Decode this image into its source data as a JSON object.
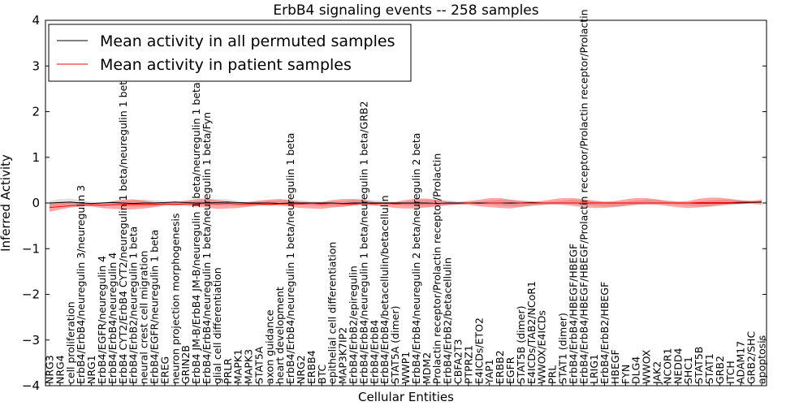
{
  "chart_data": {
    "type": "line",
    "title": "ErbB4 signaling events -- 258 samples",
    "xlabel": "Cellular Entities",
    "ylabel": "Inferred Activity",
    "ylim": [
      -4,
      4
    ],
    "yticks": [
      -4,
      -3,
      -2,
      -1,
      0,
      1,
      2,
      3,
      4
    ],
    "grid": false,
    "legend_position": "top-left",
    "categories": [
      "NRG3",
      "NRG4",
      "cell proliferation",
      "ErbB4/ErbB4/neuregulin 3/neuregulin 3",
      "NRG1",
      "ErbB4/EGFR/neuregulin 4",
      "ErbB4/ErbB4/neuregulin 4",
      "ErbB4 CYT2/ErbB4 CYT2/neuregulin 1 beta/neuregulin 1 beta",
      "ErbB4/ErbB2/neuregulin 1 beta",
      "neural crest cell migration",
      "ErbB4/EGFR/neuregulin 1 beta",
      "EREG",
      "neuron projection morphogenesis",
      "GRIN2B",
      "ErbB4 JM-B/ErbB4 JM-B/neuregulin 1 beta/neuregulin 1 beta",
      "ErbB4/ErbB4/neuregulin 1 beta/neuregulin 1 beta/Fyn",
      "glial cell differentiation",
      "PRLR",
      "MAPK1",
      "MAPK3",
      "STAT5A",
      "axon guidance",
      "heart development",
      "ErbB4/ErbB4/neuregulin 1 beta/neuregulin 1 beta",
      "NRG2",
      "ERBB4",
      "BTC",
      "epithelial cell differentiation",
      "MAP3K7IP2",
      "ErbB4/ErbB2/epiregulin",
      "ErbB4/ErbB4/neuregulin 1 beta/neuregulin 1 beta/GRB2",
      "ErbB4/ErbB4",
      "ErbB4/ErbB4/betacellulin/betacellulin",
      "STAT5A (dimer)",
      "WWP1",
      "ErbB4/ErbB4/neuregulin 2 beta/neuregulin 2 beta",
      "MDM2",
      "Prolactin receptor/Prolactin receptor/Prolactin",
      "ErbB4/ErbB2/betacellulin",
      "CBFA2T3",
      "PTPRZ1",
      "E4ICDs/ETO2",
      "YAP1",
      "ERBB2",
      "EGFR",
      "STAT5B (dimer)",
      "E4ICDs/TAB2/NCoR1",
      "WWOX/E4ICDs",
      "PRL",
      "STAT1 (dimer)",
      "ErbB4/ErbB4/HBEGF/HBEGF",
      "ErbB4/ErbB4/HBEGF/HBEGF/Prolactin receptor/Prolactin receptor/Prolactin",
      "LRIG1",
      "ErbB4/ErbB2/HBEGF",
      "HBEGF",
      "FYN",
      "DLG4",
      "WWOX",
      "JAK2",
      "NCOR1",
      "NEDD4",
      "SHC1",
      "STAT5B",
      "STAT1",
      "GRB2",
      "ITCH",
      "ADAM17",
      "GRB2/SHC",
      "apoptosis"
    ],
    "series": [
      {
        "name": "Mean activity in all permuted samples",
        "color": "#000000",
        "values": [
          0.0,
          0.01,
          0.02,
          0.0,
          -0.01,
          0.0,
          0.01,
          0.0,
          -0.01,
          0.0,
          0.0,
          0.01,
          0.02,
          0.01,
          0.0,
          0.0,
          0.01,
          0.02,
          0.01,
          0.0,
          0.0,
          0.0,
          -0.01,
          0.0,
          0.0,
          0.0,
          0.0,
          0.0,
          -0.01,
          0.0,
          0.0,
          0.0,
          0.0,
          0.0,
          0.0,
          0.0,
          0.0,
          -0.01,
          0.0,
          0.0,
          0.0,
          0.0,
          0.0,
          0.0,
          0.0,
          0.0,
          0.01,
          0.0,
          0.0,
          0.0,
          0.0,
          0.0,
          0.0,
          0.0,
          0.0,
          0.0,
          0.0,
          0.0,
          0.0,
          0.0,
          0.0,
          0.0,
          0.0,
          0.0,
          0.0,
          0.0,
          0.0,
          0.01,
          0.02
        ],
        "band": 0.05,
        "band_color": "#c8c8c8"
      },
      {
        "name": "Mean activity in patient samples",
        "color": "#ff0000",
        "values": [
          -0.1,
          -0.08,
          -0.06,
          -0.05,
          -0.04,
          -0.05,
          -0.04,
          -0.03,
          -0.03,
          -0.03,
          -0.03,
          -0.02,
          -0.03,
          -0.02,
          -0.02,
          -0.01,
          -0.02,
          -0.01,
          -0.02,
          -0.02,
          -0.02,
          -0.03,
          -0.02,
          -0.02,
          -0.02,
          -0.01,
          -0.02,
          -0.01,
          -0.02,
          -0.02,
          -0.01,
          -0.02,
          -0.01,
          -0.02,
          -0.01,
          -0.01,
          -0.01,
          -0.01,
          -0.01,
          -0.01,
          0.0,
          -0.01,
          0.0,
          0.0,
          -0.01,
          0.0,
          0.0,
          0.0,
          0.0,
          0.0,
          0.0,
          0.0,
          0.0,
          0.0,
          0.0,
          0.0,
          0.0,
          0.0,
          0.0,
          0.0,
          0.0,
          0.0,
          0.01,
          0.01,
          0.01,
          0.01,
          0.02,
          0.02,
          0.03
        ],
        "band": 0.07,
        "band_color": "#ff0000"
      }
    ]
  }
}
